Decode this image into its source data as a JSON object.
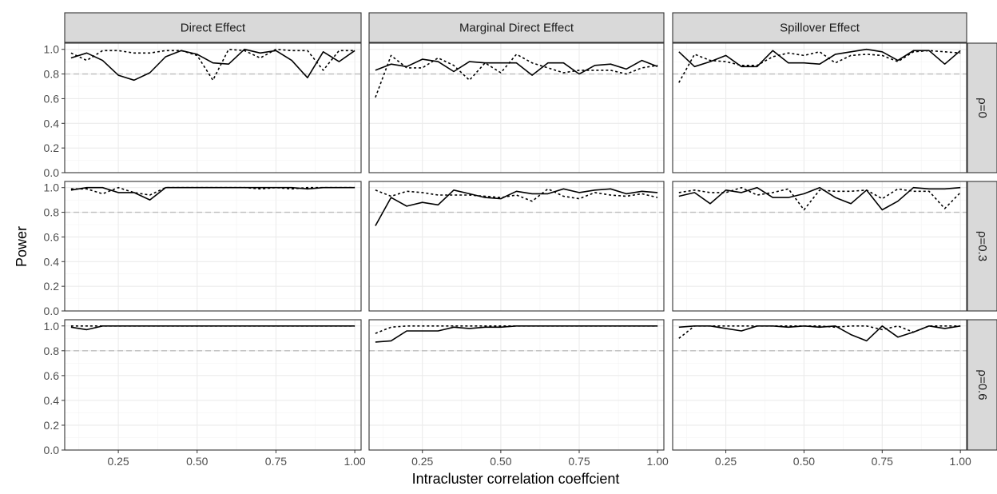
{
  "chart_data": {
    "type": "line",
    "xlabel": "Intracluster correlation coeffcient",
    "ylabel": "Power",
    "xlim": [
      0.08,
      1.02
    ],
    "ylim": [
      0,
      1.05
    ],
    "x_ticks": [
      0.25,
      0.5,
      0.75,
      1.0
    ],
    "x_tick_labels": [
      "0.25",
      "0.50",
      "0.75",
      "1.00"
    ],
    "y_ticks": [
      0,
      0.2,
      0.4,
      0.6,
      0.8,
      1.0
    ],
    "y_tick_labels": [
      "0.0",
      "0.2",
      "0.4",
      "0.6",
      "0.8",
      "1.0"
    ],
    "reference_line": 0.8,
    "grid": true,
    "columns": [
      "Direct Effect",
      "Marginal Direct Effect",
      "Spillover Effect"
    ],
    "rows": [
      "ρ=0",
      "ρ=0.3",
      "ρ=0.6"
    ],
    "x": [
      0.1,
      0.15,
      0.2,
      0.25,
      0.3,
      0.35,
      0.4,
      0.45,
      0.5,
      0.55,
      0.6,
      0.65,
      0.7,
      0.75,
      0.8,
      0.85,
      0.9,
      0.95,
      1.0
    ],
    "panels": [
      {
        "row": 0,
        "col": 0,
        "solid": [
          0.93,
          0.97,
          0.91,
          0.79,
          0.75,
          0.81,
          0.94,
          0.99,
          0.96,
          0.89,
          0.88,
          1.0,
          0.97,
          0.99,
          0.91,
          0.77,
          0.98,
          0.9,
          0.99
        ],
        "dotted": [
          0.97,
          0.91,
          0.99,
          0.99,
          0.97,
          0.97,
          0.99,
          0.99,
          0.95,
          0.75,
          1.0,
          0.99,
          0.93,
          1.0,
          0.99,
          0.99,
          0.83,
          0.99,
          0.99
        ]
      },
      {
        "row": 0,
        "col": 1,
        "solid": [
          0.83,
          0.88,
          0.86,
          0.92,
          0.9,
          0.82,
          0.9,
          0.89,
          0.89,
          0.89,
          0.79,
          0.89,
          0.89,
          0.8,
          0.87,
          0.88,
          0.84,
          0.91,
          0.86
        ],
        "dotted": [
          0.61,
          0.95,
          0.85,
          0.85,
          0.93,
          0.87,
          0.75,
          0.89,
          0.81,
          0.96,
          0.89,
          0.85,
          0.81,
          0.83,
          0.83,
          0.83,
          0.8,
          0.85,
          0.87
        ]
      },
      {
        "row": 0,
        "col": 2,
        "solid": [
          0.98,
          0.86,
          0.9,
          0.95,
          0.86,
          0.86,
          0.99,
          0.89,
          0.89,
          0.88,
          0.96,
          0.98,
          1.0,
          0.98,
          0.91,
          0.99,
          0.99,
          0.88,
          0.99
        ],
        "dotted": [
          0.73,
          0.96,
          0.91,
          0.9,
          0.87,
          0.87,
          0.94,
          0.97,
          0.95,
          0.98,
          0.89,
          0.95,
          0.96,
          0.95,
          0.9,
          0.98,
          0.99,
          0.98,
          0.97
        ]
      },
      {
        "row": 1,
        "col": 0,
        "solid": [
          0.98,
          1.0,
          1.0,
          0.96,
          0.96,
          0.9,
          1.0,
          1.0,
          1.0,
          1.0,
          1.0,
          1.0,
          1.0,
          1.0,
          1.0,
          0.99,
          1.0,
          1.0,
          1.0
        ],
        "dotted": [
          0.99,
          0.99,
          0.95,
          1.0,
          0.96,
          0.94,
          1.0,
          1.0,
          1.0,
          1.0,
          1.0,
          1.0,
          0.99,
          1.0,
          0.99,
          1.0,
          1.0,
          1.0,
          1.0
        ]
      },
      {
        "row": 1,
        "col": 1,
        "solid": [
          0.69,
          0.92,
          0.85,
          0.88,
          0.86,
          0.98,
          0.95,
          0.92,
          0.91,
          0.97,
          0.95,
          0.95,
          0.99,
          0.96,
          0.98,
          0.99,
          0.95,
          0.97,
          0.96
        ],
        "dotted": [
          0.98,
          0.93,
          0.97,
          0.96,
          0.94,
          0.94,
          0.94,
          0.93,
          0.92,
          0.94,
          0.89,
          0.99,
          0.93,
          0.91,
          0.96,
          0.94,
          0.93,
          0.95,
          0.92
        ]
      },
      {
        "row": 1,
        "col": 2,
        "solid": [
          0.93,
          0.96,
          0.87,
          0.98,
          0.96,
          1.0,
          0.92,
          0.92,
          0.95,
          1.0,
          0.92,
          0.87,
          0.98,
          0.82,
          0.89,
          1.0,
          0.99,
          0.99,
          1.0
        ],
        "dotted": [
          0.96,
          0.98,
          0.96,
          0.96,
          1.0,
          0.94,
          0.96,
          0.99,
          0.82,
          0.98,
          0.97,
          0.97,
          0.98,
          0.91,
          0.99,
          0.97,
          0.97,
          0.83,
          0.96
        ]
      },
      {
        "row": 2,
        "col": 0,
        "solid": [
          0.99,
          0.97,
          1.0,
          1.0,
          1.0,
          1.0,
          1.0,
          1.0,
          1.0,
          1.0,
          1.0,
          1.0,
          1.0,
          1.0,
          1.0,
          1.0,
          1.0,
          1.0,
          1.0
        ],
        "dotted": [
          1.0,
          1.0,
          1.0,
          1.0,
          1.0,
          1.0,
          1.0,
          1.0,
          1.0,
          1.0,
          1.0,
          1.0,
          1.0,
          1.0,
          1.0,
          1.0,
          1.0,
          1.0,
          1.0
        ]
      },
      {
        "row": 2,
        "col": 1,
        "solid": [
          0.87,
          0.88,
          0.96,
          0.96,
          0.96,
          0.99,
          0.98,
          0.99,
          0.99,
          1.0,
          1.0,
          1.0,
          1.0,
          1.0,
          1.0,
          1.0,
          1.0,
          1.0,
          1.0
        ],
        "dotted": [
          0.94,
          0.99,
          1.0,
          1.0,
          1.0,
          1.0,
          1.0,
          1.0,
          1.0,
          1.0,
          1.0,
          1.0,
          1.0,
          1.0,
          1.0,
          1.0,
          1.0,
          1.0,
          1.0
        ]
      },
      {
        "row": 2,
        "col": 2,
        "solid": [
          0.99,
          1.0,
          1.0,
          0.98,
          0.96,
          1.0,
          1.0,
          0.99,
          1.0,
          0.99,
          1.0,
          0.93,
          0.88,
          1.0,
          0.91,
          0.95,
          1.0,
          0.98,
          1.0
        ],
        "dotted": [
          0.9,
          1.0,
          1.0,
          1.0,
          1.0,
          1.0,
          1.0,
          1.0,
          1.0,
          1.0,
          0.99,
          1.0,
          1.0,
          0.97,
          1.0,
          0.95,
          1.0,
          1.0,
          1.0
        ]
      }
    ]
  }
}
